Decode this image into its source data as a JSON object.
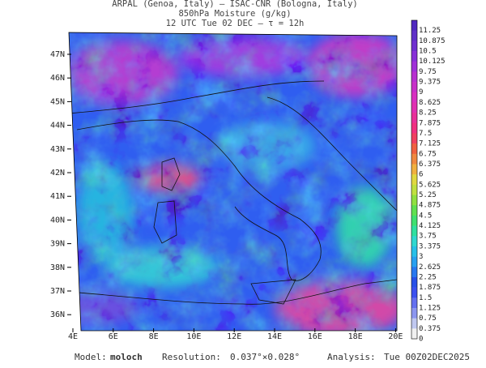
{
  "header": {
    "line1": "ARPAL (Genoa, Italy)  —  ISAC-CNR (Bologna, Italy)",
    "line2": "850hPa Moisture (g/kg)",
    "line3": "12 UTC Tue 02 DEC  —  τ = 12h"
  },
  "map": {
    "lat_labels": [
      "47N",
      "46N",
      "45N",
      "44N",
      "43N",
      "42N",
      "41N",
      "40N",
      "39N",
      "38N",
      "37N",
      "36N"
    ],
    "lon_labels": [
      "4E",
      "6E",
      "8E",
      "10E",
      "12E",
      "14E",
      "16E",
      "18E",
      "20E"
    ]
  },
  "colorbar": {
    "labels": [
      "11.25",
      "10.875",
      "10.5",
      "10.125",
      "9.75",
      "9.375",
      "9",
      "8.625",
      "8.25",
      "7.875",
      "7.5",
      "7.125",
      "6.75",
      "6.375",
      "6",
      "5.625",
      "5.25",
      "4.875",
      "4.5",
      "4.125",
      "3.75",
      "3.375",
      "3",
      "2.625",
      "2.25",
      "1.875",
      "1.5",
      "1.125",
      "0.75",
      "0.375",
      "0"
    ]
  },
  "footer": {
    "model_label": "Model:",
    "model": "moloch",
    "resolution_label": "Resolution:",
    "resolution": "0.037°×0.028°",
    "analysis_label": "Analysis:",
    "analysis": "Tue 00Z02DEC2025"
  }
}
